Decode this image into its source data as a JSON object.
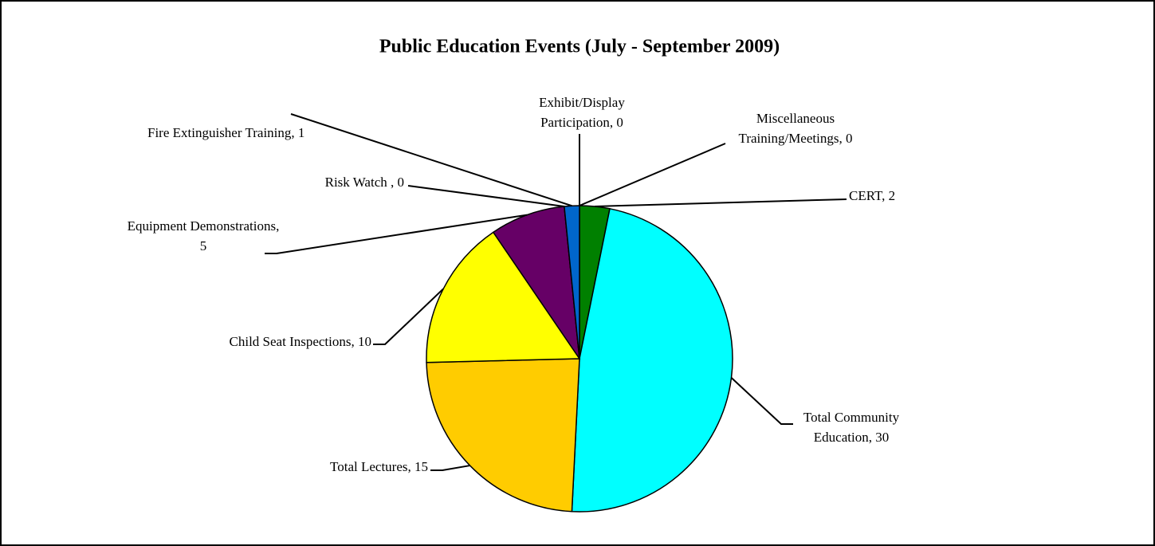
{
  "chart_data": {
    "type": "pie",
    "title": "Public Education Events (July - September 2009)",
    "values": [
      0,
      0,
      2,
      30,
      15,
      10,
      5,
      0,
      1
    ],
    "value_labels": [
      "Exhibit/Display Participation, 0",
      "Miscellaneous Training/Meetings, 0",
      "CERT, 2",
      "Total Community Education, 30",
      "Total Lectures, 15",
      "Child Seat Inspections, 10",
      "Equipment Demonstrations, 5",
      "Risk Watch , 0",
      "Fire Extinguisher Training, 1"
    ],
    "colors": [
      "#ffffff",
      "#ffffff",
      "#008000",
      "#00ffff",
      "#ffcc00",
      "#ffff00",
      "#660066",
      "#ffffff",
      "#0066cc"
    ]
  }
}
